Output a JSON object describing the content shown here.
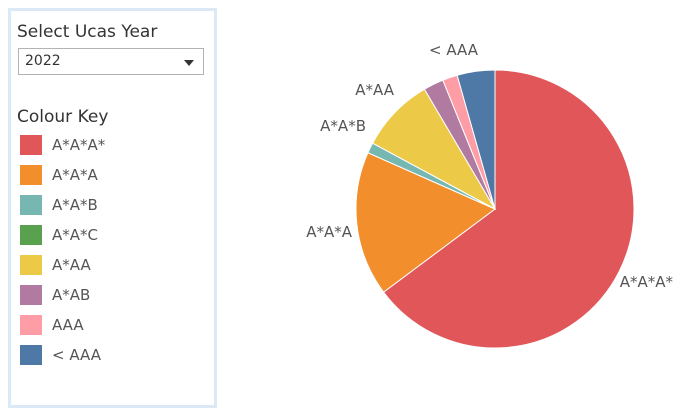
{
  "filter": {
    "title": "Select Ucas Year",
    "selected": "2022"
  },
  "legend": {
    "title": "Colour Key"
  },
  "chart_data": {
    "type": "pie",
    "title": "",
    "categories": [
      "A*A*A*",
      "A*A*A",
      "A*A*B",
      "A*A*C",
      "A*AA",
      "A*AB",
      "AAA",
      "< AAA"
    ],
    "colors": [
      "#e15759",
      "#f28e2b",
      "#76b7b2",
      "#59a14f",
      "#edc948",
      "#b07aa1",
      "#ff9da7",
      "#4e79a7"
    ],
    "values": [
      63.5,
      16.5,
      1.2,
      0.0,
      8.5,
      2.3,
      1.7,
      4.3
    ],
    "unit": "%",
    "start_angle_deg": 0,
    "direction": "clockwise",
    "slice_labels": [
      "A*A*A*",
      "A*A*A",
      "A*A*B",
      "",
      "A*AA",
      "",
      "",
      "< AAA"
    ]
  }
}
